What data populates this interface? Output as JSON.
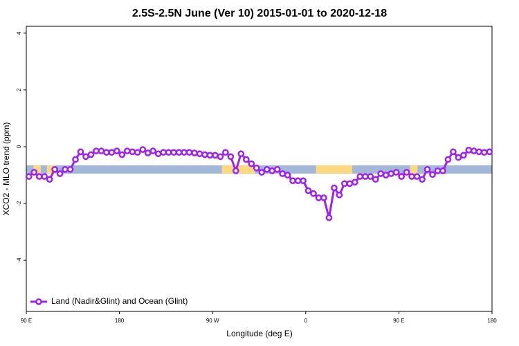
{
  "chart_data": {
    "type": "line",
    "title": "2.5S-2.5N June (Ver 10)   2015-01-01 to 2020-12-18",
    "xlabel": "Longitude (deg E)",
    "ylabel": "XCO2 - MLO trend (ppm)",
    "xlim": [
      90,
      540
    ],
    "ylim": [
      -5.8,
      4.24
    ],
    "xticks": [
      {
        "value": 90,
        "label": "90 E"
      },
      180,
      {
        "value": 270,
        "label": "90 W"
      },
      {
        "value": 360,
        "label": "0"
      },
      {
        "value": 450,
        "label": "90 E"
      },
      {
        "value": 540,
        "label": "180"
      }
    ],
    "yticks": [
      -4,
      -2,
      0,
      2,
      4
    ],
    "legend": "bottom-left",
    "band": {
      "y": -0.8,
      "ocean_color": "#a3b8d9",
      "land_color": "#fcd980",
      "land": [
        [
          97,
          104
        ],
        [
          110,
          118
        ],
        [
          279,
          311
        ],
        [
          370,
          405
        ],
        [
          461,
          468
        ]
      ]
    },
    "x": [
      92.5,
      97.5,
      102.5,
      107.5,
      112.5,
      117.5,
      122.5,
      127.5,
      132.5,
      137.5,
      142.5,
      147.5,
      152.5,
      157.5,
      162.5,
      167.5,
      172.5,
      177.5,
      182.5,
      187.5,
      192.5,
      197.5,
      202.5,
      207.5,
      212.5,
      217.5,
      222.5,
      227.5,
      232.5,
      237.5,
      242.5,
      247.5,
      252.5,
      257.5,
      262.5,
      267.5,
      272.5,
      277.5,
      282.5,
      287.5,
      292.5,
      297.5,
      302.5,
      307.5,
      312.5,
      317.5,
      322.5,
      327.5,
      332.5,
      337.5,
      342.5,
      347.5,
      352.5,
      357.5,
      362.5,
      367.5,
      372.5,
      377.5,
      382.5,
      387.5,
      392.5,
      397.5,
      402.5,
      407.5,
      412.5,
      417.5,
      422.5,
      427.5,
      432.5,
      437.5,
      442.5,
      447.5,
      452.5,
      457.5,
      462.5,
      467.5,
      472.5,
      477.5,
      482.5,
      487.5,
      492.5,
      497.5,
      502.5,
      507.5,
      512.5,
      517.5,
      522.5,
      527.5,
      532.5,
      537.5
    ],
    "series": [
      {
        "name": "Land (Nadir&Glint) and Ocean (Glint)",
        "color": "#a020f0",
        "values": [
          -1.05,
          -0.9,
          -1.05,
          -1.05,
          -1.15,
          -0.8,
          -0.95,
          -0.8,
          -0.8,
          -0.45,
          -0.18,
          -0.35,
          -0.28,
          -0.15,
          -0.15,
          -0.2,
          -0.2,
          -0.15,
          -0.28,
          -0.15,
          -0.18,
          -0.2,
          -0.1,
          -0.22,
          -0.15,
          -0.25,
          -0.2,
          -0.2,
          -0.2,
          -0.2,
          -0.2,
          -0.2,
          -0.22,
          -0.25,
          -0.28,
          -0.3,
          -0.3,
          -0.35,
          -0.2,
          -0.35,
          -0.85,
          -0.25,
          -0.45,
          -0.6,
          -0.75,
          -0.9,
          -0.8,
          -0.85,
          -0.8,
          -0.95,
          -1.0,
          -1.2,
          -1.2,
          -1.2,
          -1.55,
          -1.65,
          -1.8,
          -1.8,
          -2.5,
          -1.45,
          -1.7,
          -1.3,
          -1.3,
          -1.25,
          -1.05,
          -1.05,
          -1.05,
          -1.15,
          -0.95,
          -1.0,
          -0.95,
          -0.9,
          -1.05,
          -0.9,
          -1.05,
          -1.05,
          -1.15,
          -0.8,
          -0.98,
          -0.85,
          -0.85,
          -0.45,
          -0.18,
          -0.38,
          -0.3,
          -0.12,
          -0.15,
          -0.18,
          -0.2,
          -0.18
        ]
      }
    ]
  }
}
